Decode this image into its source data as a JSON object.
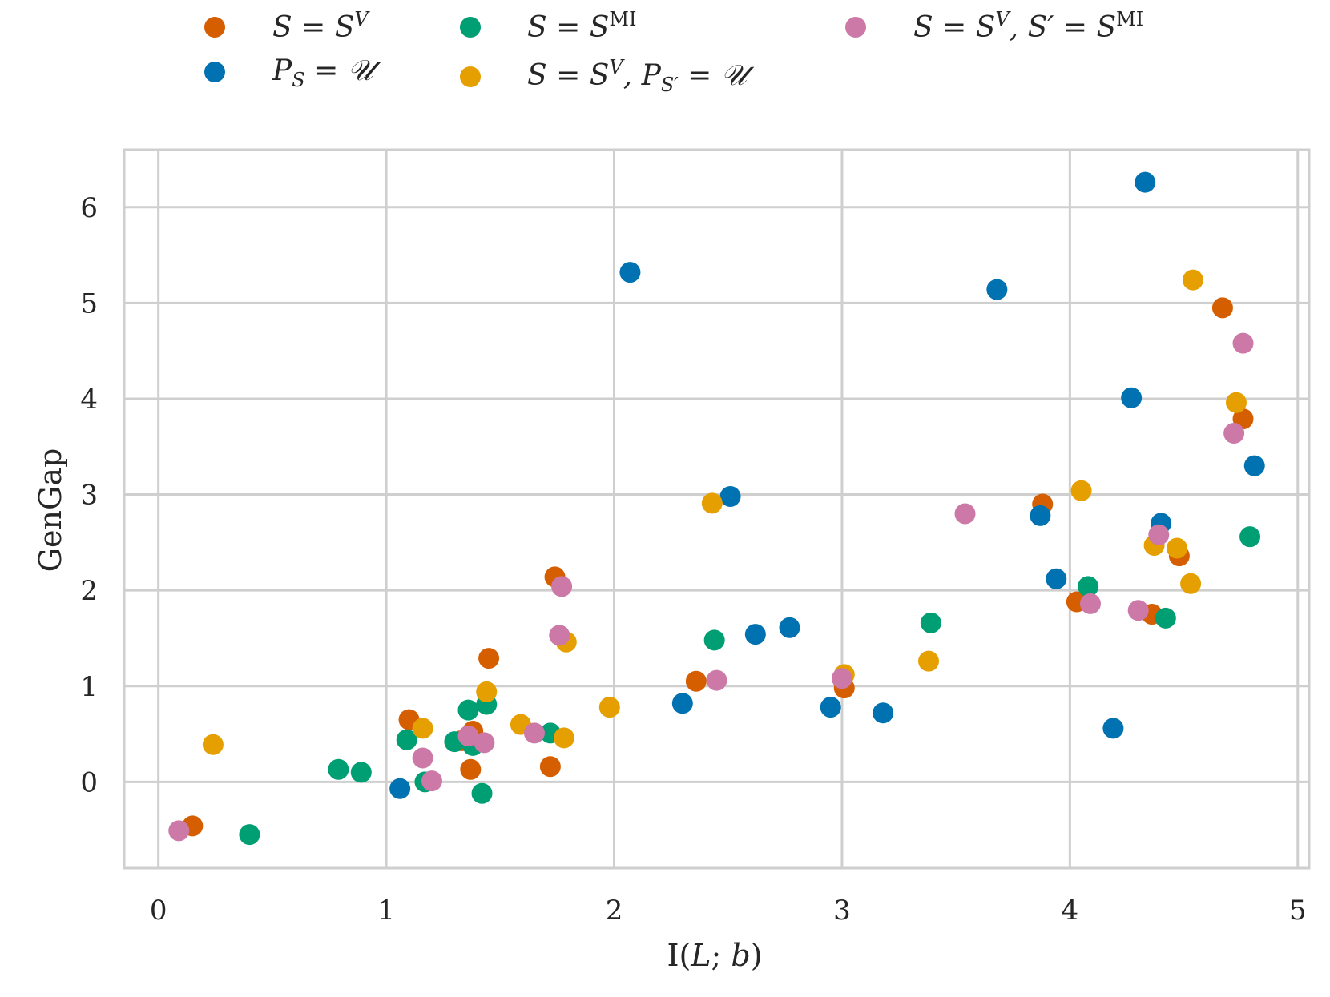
{
  "chart_data": {
    "type": "scatter",
    "xlabel": "I(L; b)",
    "ylabel": "GenGap",
    "xlim": [
      -0.15,
      5.05
    ],
    "ylim": [
      -0.9,
      6.6
    ],
    "xticks": [
      0,
      1,
      2,
      3,
      4,
      5
    ],
    "yticks": [
      0,
      1,
      2,
      3,
      4,
      5,
      6
    ],
    "grid": true,
    "legend_position": "top",
    "series": [
      {
        "name": "S = S^V",
        "color": "#d55e00",
        "points": [
          [
            0.15,
            -0.46
          ],
          [
            1.1,
            0.65
          ],
          [
            1.38,
            0.53
          ],
          [
            1.33,
            0.43
          ],
          [
            1.37,
            0.13
          ],
          [
            1.45,
            1.29
          ],
          [
            1.72,
            0.16
          ],
          [
            1.74,
            2.14
          ],
          [
            2.36,
            1.05
          ],
          [
            3.01,
            0.98
          ],
          [
            3.88,
            2.9
          ],
          [
            4.03,
            1.88
          ],
          [
            4.36,
            1.75
          ],
          [
            4.48,
            2.36
          ],
          [
            4.67,
            4.95
          ],
          [
            4.76,
            3.79
          ]
        ]
      },
      {
        "name": "P_S = U",
        "color": "#0072b2",
        "points": [
          [
            1.06,
            -0.07
          ],
          [
            2.07,
            5.32
          ],
          [
            2.3,
            0.82
          ],
          [
            2.51,
            2.98
          ],
          [
            2.62,
            1.54
          ],
          [
            2.77,
            1.61
          ],
          [
            2.95,
            0.78
          ],
          [
            3.18,
            0.72
          ],
          [
            3.68,
            5.14
          ],
          [
            3.87,
            2.78
          ],
          [
            3.94,
            2.12
          ],
          [
            4.19,
            0.56
          ],
          [
            4.27,
            4.01
          ],
          [
            4.33,
            6.26
          ],
          [
            4.4,
            2.7
          ],
          [
            4.81,
            3.3
          ]
        ]
      },
      {
        "name": "S = S^MI",
        "color": "#009e73",
        "points": [
          [
            0.4,
            -0.55
          ],
          [
            0.79,
            0.13
          ],
          [
            0.89,
            0.1
          ],
          [
            1.09,
            0.44
          ],
          [
            1.17,
            0.0
          ],
          [
            1.3,
            0.42
          ],
          [
            1.36,
            0.75
          ],
          [
            1.38,
            0.38
          ],
          [
            1.42,
            -0.12
          ],
          [
            1.44,
            0.81
          ],
          [
            1.72,
            0.51
          ],
          [
            2.44,
            1.48
          ],
          [
            3.39,
            1.66
          ],
          [
            4.08,
            2.04
          ],
          [
            4.42,
            1.71
          ],
          [
            4.79,
            2.56
          ]
        ]
      },
      {
        "name": "S = S^V, P_S' = U",
        "color": "#e69f00",
        "points": [
          [
            0.24,
            0.39
          ],
          [
            1.16,
            0.56
          ],
          [
            1.44,
            0.94
          ],
          [
            1.59,
            0.6
          ],
          [
            1.79,
            1.46
          ],
          [
            1.78,
            0.46
          ],
          [
            1.98,
            0.78
          ],
          [
            2.43,
            2.91
          ],
          [
            3.01,
            1.12
          ],
          [
            3.38,
            1.26
          ],
          [
            4.05,
            3.04
          ],
          [
            4.37,
            2.47
          ],
          [
            4.47,
            2.44
          ],
          [
            4.53,
            2.07
          ],
          [
            4.54,
            5.24
          ],
          [
            4.73,
            3.96
          ]
        ]
      },
      {
        "name": "S = S^V, S' = S^MI",
        "color": "#cc79a7",
        "points": [
          [
            0.09,
            -0.51
          ],
          [
            1.16,
            0.25
          ],
          [
            1.2,
            0.01
          ],
          [
            1.36,
            0.48
          ],
          [
            1.43,
            0.41
          ],
          [
            1.65,
            0.51
          ],
          [
            1.76,
            1.53
          ],
          [
            1.77,
            2.04
          ],
          [
            2.45,
            1.06
          ],
          [
            3.0,
            1.08
          ],
          [
            3.54,
            2.8
          ],
          [
            4.09,
            1.86
          ],
          [
            4.3,
            1.79
          ],
          [
            4.39,
            2.58
          ],
          [
            4.72,
            3.64
          ],
          [
            4.76,
            4.58
          ]
        ]
      }
    ]
  }
}
